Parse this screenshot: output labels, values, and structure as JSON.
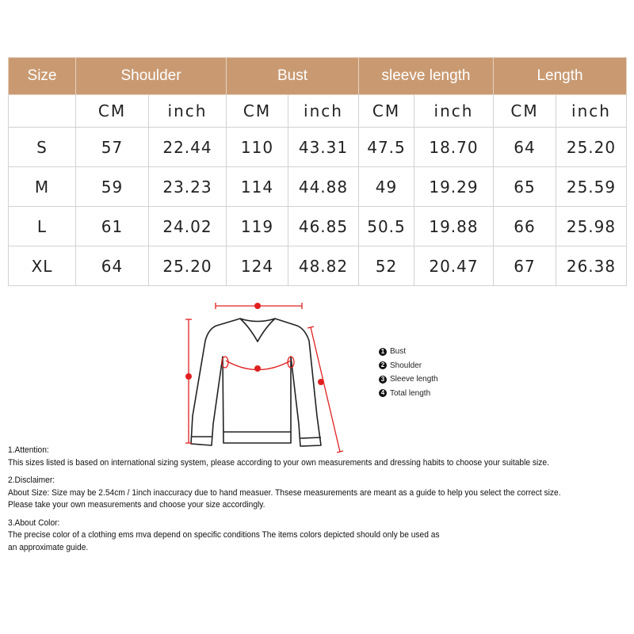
{
  "table": {
    "header_color": "#c99a72",
    "headers": [
      "Size",
      "Shoulder",
      "Bust",
      "sleeve length",
      "Length"
    ],
    "units": [
      "CM",
      "inch",
      "CM",
      "inch",
      "CM",
      "inch",
      "CM",
      "inch"
    ],
    "rows": [
      [
        "S",
        "57",
        "22.44",
        "110",
        "43.31",
        "47.5",
        "18.70",
        "64",
        "25.20"
      ],
      [
        "M",
        "59",
        "23.23",
        "114",
        "44.88",
        "49",
        "19.29",
        "65",
        "25.59"
      ],
      [
        "L",
        "61",
        "24.02",
        "119",
        "46.85",
        "50.5",
        "19.88",
        "66",
        "25.98"
      ],
      [
        "XL",
        "64",
        "25.20",
        "124",
        "48.82",
        "52",
        "20.47",
        "67",
        "26.38"
      ]
    ]
  },
  "diagram": {
    "marker_color": "#e02020",
    "legend": [
      {
        "num": "1",
        "label": "Bust"
      },
      {
        "num": "2",
        "label": "Shoulder"
      },
      {
        "num": "3",
        "label": "Sleeve length"
      },
      {
        "num": "4",
        "label": "Total length"
      }
    ]
  },
  "notes": [
    {
      "title": "1.Attention:",
      "lines": [
        "This sizes listed is based on international sizing system, please according to your own measurements and dressing habits to choose your suitable size."
      ]
    },
    {
      "title": "2.Disclaimer:",
      "lines": [
        "About Size: Size may be 2.54cm / 1inch inaccuracy due to hand measuer. Thsese measurements are meant as a guide to help you select the correct size.",
        "Please take your own measurements and choose your size accordingly."
      ]
    },
    {
      "title": "3.About Color:",
      "lines": [
        "The precise color of a clothing ems mva depend on specific conditions The items colors depicted should only be used as",
        "an approximate guide."
      ]
    }
  ]
}
